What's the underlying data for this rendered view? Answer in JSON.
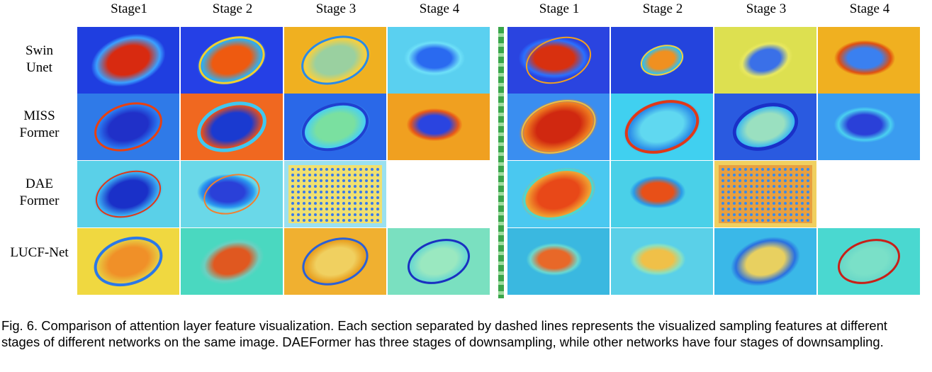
{
  "stage_headers": {
    "left": [
      "Stage1",
      "Stage 2",
      "Stage 3",
      "Stage 4"
    ],
    "right": [
      "Stage 1",
      "Stage 2",
      "Stage 3",
      "Stage 4"
    ]
  },
  "row_labels": [
    {
      "line1": "Swin",
      "line2": "Unet"
    },
    {
      "line1": "MISS",
      "line2": "Former"
    },
    {
      "line1": "DAE",
      "line2": "Former"
    },
    {
      "line1": "LUCF-Net",
      "line2": ""
    }
  ],
  "caption": "Fig. 6. Comparison of attention layer feature visualization. Each section separated by dashed lines represents the visualized sampling features at different stages of different networks on the same image. DAEFormer has three stages of downsampling, while other networks have four stages of downsampling.",
  "colors": {
    "jet_blue": "#1a3fd6",
    "jet_cyan": "#33ccee",
    "jet_yellow": "#f0e030",
    "jet_red": "#d42010",
    "divider_green": "#3aa64a"
  }
}
